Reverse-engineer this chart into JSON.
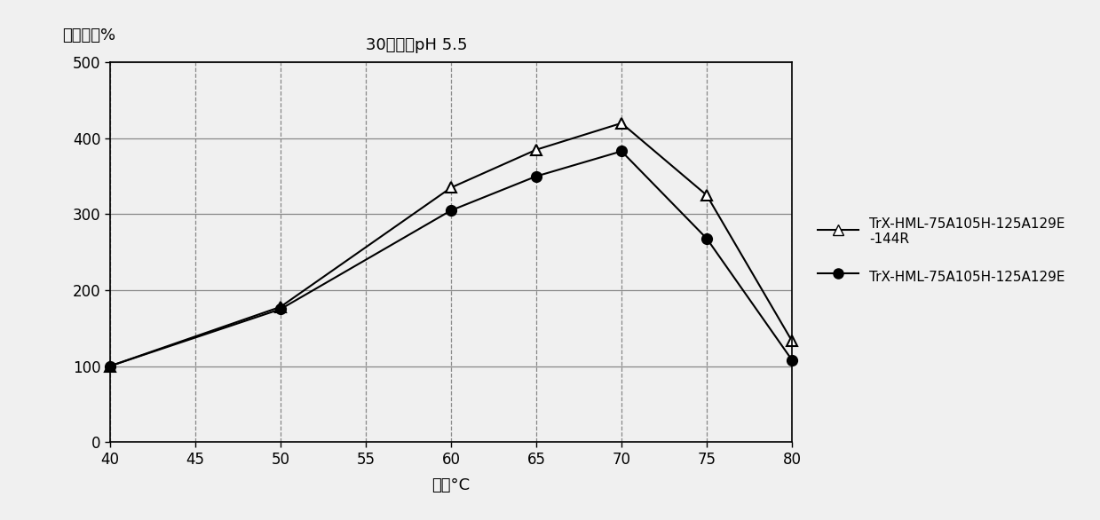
{
  "title": "30分钟，pH 5.5",
  "xlabel": "温度°C",
  "ylabel": "相对活性%",
  "xlim": [
    40,
    80
  ],
  "ylim": [
    0,
    500
  ],
  "xticks": [
    40,
    45,
    50,
    55,
    60,
    65,
    70,
    75,
    80
  ],
  "yticks": [
    0,
    100,
    200,
    300,
    400,
    500
  ],
  "series": [
    {
      "label": "TrX-HML-75A105H-125A129E\n-144R",
      "x": [
        40,
        50,
        60,
        65,
        70,
        75,
        80
      ],
      "y": [
        100,
        178,
        335,
        385,
        420,
        325,
        133
      ],
      "color": "#000000",
      "marker": "^",
      "markersize": 8,
      "linestyle": "-",
      "linewidth": 1.5,
      "markerfacecolor": "white"
    },
    {
      "label": "TrX-HML-75A105H-125A129E",
      "x": [
        40,
        50,
        60,
        65,
        70,
        75,
        80
      ],
      "y": [
        100,
        175,
        305,
        350,
        383,
        268,
        108
      ],
      "color": "#000000",
      "marker": "o",
      "markersize": 8,
      "linestyle": "-",
      "linewidth": 1.5,
      "markerfacecolor": "#000000"
    }
  ],
  "grid_color": "#888888",
  "background_color": "#f0f0f0",
  "figsize": [
    12.39,
    5.86
  ],
  "dpi": 100
}
